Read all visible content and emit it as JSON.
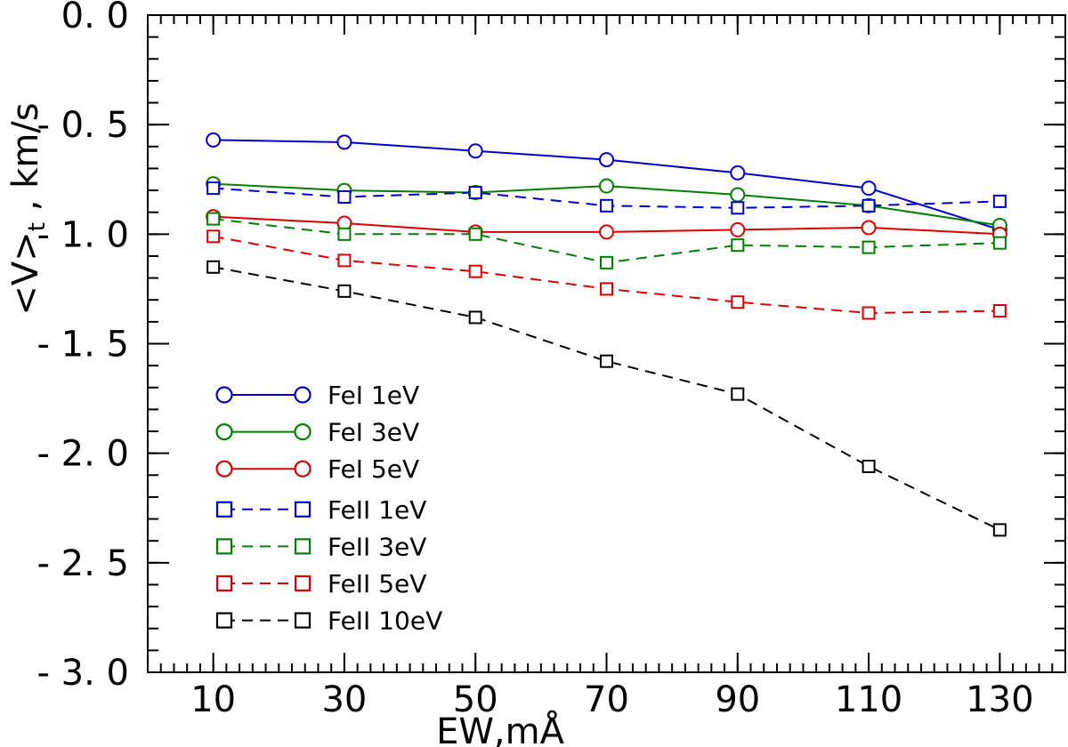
{
  "chart_data": {
    "type": "line",
    "xlabel": "EW,mÅ",
    "ylabel_main": "<V>",
    "ylabel_sub": "t",
    "ylabel_unit": " , km/s",
    "xlim": [
      0,
      140
    ],
    "ylim": [
      -3.0,
      0.0
    ],
    "x_ticks": [
      10,
      30,
      50,
      70,
      90,
      110,
      130
    ],
    "x_tick_labels": [
      "10",
      "30",
      "50",
      "70",
      "90",
      "110",
      "130"
    ],
    "y_ticks": [
      0.0,
      -0.5,
      -1.0,
      -1.5,
      -2.0,
      -2.5,
      -3.0
    ],
    "y_tick_labels": [
      "0. 0",
      "- 0. 5",
      "- 1. 0",
      "- 1. 5",
      "- 2. 0",
      "- 2. 5",
      "- 3. 0"
    ],
    "x_minor_step": 2,
    "y_minor_step": 0.1,
    "grid": false,
    "legend_position": "bottom-left",
    "x": [
      10,
      30,
      50,
      70,
      90,
      110,
      130
    ],
    "series": [
      {
        "name": "FeI 1eV",
        "color": "#0000cc",
        "marker": "circle",
        "dash": "solid",
        "values": [
          -0.57,
          -0.58,
          -0.62,
          -0.66,
          -0.72,
          -0.79,
          -0.98
        ]
      },
      {
        "name": "FeI 3eV",
        "color": "#008000",
        "marker": "circle",
        "dash": "solid",
        "values": [
          -0.77,
          -0.8,
          -0.81,
          -0.78,
          -0.82,
          -0.87,
          -0.96
        ]
      },
      {
        "name": "FeI 5eV",
        "color": "#dd0000",
        "marker": "circle",
        "dash": "solid",
        "values": [
          -0.92,
          -0.95,
          -0.99,
          -0.99,
          -0.98,
          -0.97,
          -1.0
        ]
      },
      {
        "name": "FeII 1eV",
        "color": "#0000cc",
        "marker": "square",
        "dash": "dashed",
        "values": [
          -0.79,
          -0.83,
          -0.81,
          -0.87,
          -0.88,
          -0.87,
          -0.85
        ]
      },
      {
        "name": "FeII 3eV",
        "color": "#008000",
        "marker": "square",
        "dash": "dashed",
        "values": [
          -0.93,
          -1.0,
          -1.0,
          -1.13,
          -1.05,
          -1.06,
          -1.04
        ]
      },
      {
        "name": "FeII 5eV",
        "color": "#dd0000",
        "marker": "square",
        "dash": "dashed",
        "values": [
          -1.01,
          -1.12,
          -1.17,
          -1.25,
          -1.31,
          -1.36,
          -1.35
        ]
      },
      {
        "name": "FeII 10eV",
        "color": "#000000",
        "marker": "square",
        "dash": "dashed",
        "values": [
          -1.15,
          -1.26,
          -1.38,
          -1.58,
          -1.73,
          -2.06,
          -2.35
        ]
      }
    ]
  }
}
